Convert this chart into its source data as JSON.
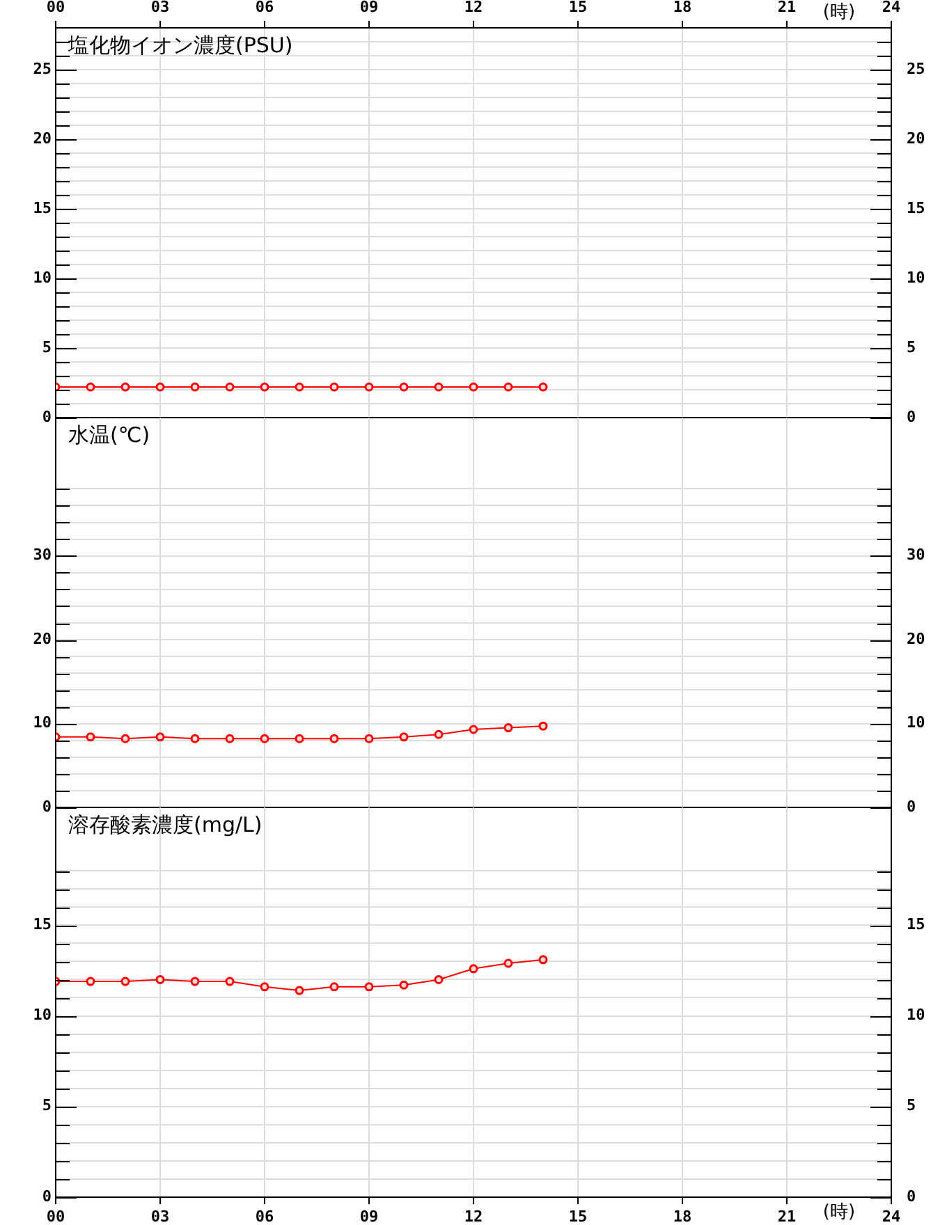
{
  "chart_data": [
    {
      "type": "line",
      "title": "塩化物イオン濃度(PSU)",
      "x": [
        0,
        1,
        2,
        3,
        4,
        5,
        6,
        7,
        8,
        9,
        10,
        11,
        12,
        13,
        14
      ],
      "series": [
        {
          "color": "#ff0000",
          "values": [
            2.2,
            2.2,
            2.2,
            2.2,
            2.2,
            2.2,
            2.2,
            2.2,
            2.2,
            2.2,
            2.2,
            2.2,
            2.2,
            2.2,
            2.2
          ]
        }
      ],
      "xlim": [
        0,
        24
      ],
      "xticks": [
        {
          "value": 0,
          "label": null
        },
        {
          "value": 3,
          "label": null
        },
        {
          "value": 6,
          "label": null
        },
        {
          "value": 9,
          "label": null
        },
        {
          "value": 12,
          "label": null
        },
        {
          "value": 15,
          "label": null
        },
        {
          "value": 18,
          "label": null
        },
        {
          "value": 21,
          "label": null
        },
        {
          "value": 24,
          "label": null
        }
      ],
      "x2lim": [
        0,
        24
      ],
      "x2ticks": [
        {
          "value": 0,
          "label": "00"
        },
        {
          "value": 3,
          "label": "03"
        },
        {
          "value": 6,
          "label": "06"
        },
        {
          "value": 9,
          "label": "09"
        },
        12,
        15,
        18,
        21,
        24
      ],
      "x2label": "(時)",
      "ylim": [
        0,
        28
      ],
      "yticks": [
        0,
        {
          "value": 1,
          "label": null
        },
        {
          "value": 2,
          "label": null
        },
        {
          "value": 3,
          "label": null
        },
        {
          "value": 4,
          "label": null
        },
        5,
        {
          "value": 6,
          "label": null
        },
        {
          "value": 7,
          "label": null
        },
        {
          "value": 8,
          "label": null
        },
        {
          "value": 9,
          "label": null
        },
        10,
        {
          "value": 11,
          "label": null
        },
        {
          "value": 12,
          "label": null
        },
        {
          "value": 13,
          "label": null
        },
        {
          "value": 14,
          "label": null
        },
        15,
        {
          "value": 16,
          "label": null
        },
        {
          "value": 17,
          "label": null
        },
        {
          "value": 18,
          "label": null
        },
        {
          "value": 19,
          "label": null
        },
        20,
        {
          "value": 21,
          "label": null
        },
        {
          "value": 22,
          "label": null
        },
        {
          "value": 23,
          "label": null
        },
        {
          "value": 24,
          "label": null
        },
        25,
        {
          "value": 26,
          "label": null
        },
        {
          "value": 27,
          "label": null
        }
      ],
      "y2lim": [
        0,
        28
      ],
      "y2ticks": [
        0,
        {
          "value": 1,
          "label": null
        },
        {
          "value": 2,
          "label": null
        },
        {
          "value": 3,
          "label": null
        },
        {
          "value": 4,
          "label": null
        },
        5,
        {
          "value": 6,
          "label": null
        },
        {
          "value": 7,
          "label": null
        },
        {
          "value": 8,
          "label": null
        },
        {
          "value": 9,
          "label": null
        },
        10,
        {
          "value": 11,
          "label": null
        },
        {
          "value": 12,
          "label": null
        },
        {
          "value": 13,
          "label": null
        },
        {
          "value": 14,
          "label": null
        },
        15,
        {
          "value": 16,
          "label": null
        },
        {
          "value": 17,
          "label": null
        },
        {
          "value": 18,
          "label": null
        },
        {
          "value": 19,
          "label": null
        },
        20,
        {
          "value": 21,
          "label": null
        },
        {
          "value": 22,
          "label": null
        },
        {
          "value": 23,
          "label": null
        },
        {
          "value": 24,
          "label": null
        },
        25,
        {
          "value": 26,
          "label": null
        },
        {
          "value": 27,
          "label": null
        }
      ],
      "tick_labels": "y",
      "grid": true,
      "marker": "circle",
      "line_style": "solid"
    },
    {
      "type": "line",
      "title": "水温(℃)",
      "x": [
        0,
        1,
        2,
        3,
        4,
        5,
        6,
        7,
        8,
        9,
        10,
        11,
        12,
        13,
        14
      ],
      "series": [
        {
          "color": "#ff0000",
          "values": [
            8.4,
            8.4,
            8.2,
            8.4,
            8.2,
            8.2,
            8.2,
            8.2,
            8.2,
            8.2,
            8.4,
            8.7,
            9.3,
            9.5,
            9.7
          ]
        }
      ],
      "xlim": [
        0,
        24
      ],
      "xticks": [
        {
          "value": 0,
          "label": null
        },
        {
          "value": 3,
          "label": null
        },
        {
          "value": 6,
          "label": null
        },
        {
          "value": 9,
          "label": null
        },
        {
          "value": 12,
          "label": null
        },
        {
          "value": 15,
          "label": null
        },
        {
          "value": 18,
          "label": null
        },
        {
          "value": 21,
          "label": null
        },
        {
          "value": 24,
          "label": null
        }
      ],
      "ylim": [
        0,
        46.5
      ],
      "yticks": [
        0,
        {
          "value": 2,
          "label": null
        },
        {
          "value": 4,
          "label": null
        },
        {
          "value": 6,
          "label": null
        },
        {
          "value": 8,
          "label": null
        },
        10,
        {
          "value": 12,
          "label": null
        },
        {
          "value": 14,
          "label": null
        },
        {
          "value": 16,
          "label": null
        },
        {
          "value": 18,
          "label": null
        },
        20,
        {
          "value": 22,
          "label": null
        },
        {
          "value": 24,
          "label": null
        },
        {
          "value": 26,
          "label": null
        },
        {
          "value": 28,
          "label": null
        },
        30,
        {
          "value": 32,
          "label": null
        },
        {
          "value": 34,
          "label": null
        },
        {
          "value": 36,
          "label": null
        },
        {
          "value": 38,
          "label": null
        }
      ],
      "y2lim": [
        0,
        46.5
      ],
      "y2ticks": [
        0,
        {
          "value": 2,
          "label": null
        },
        {
          "value": 4,
          "label": null
        },
        {
          "value": 6,
          "label": null
        },
        {
          "value": 8,
          "label": null
        },
        10,
        {
          "value": 12,
          "label": null
        },
        {
          "value": 14,
          "label": null
        },
        {
          "value": 16,
          "label": null
        },
        {
          "value": 18,
          "label": null
        },
        20,
        {
          "value": 22,
          "label": null
        },
        {
          "value": 24,
          "label": null
        },
        {
          "value": 26,
          "label": null
        },
        {
          "value": 28,
          "label": null
        },
        30,
        {
          "value": 32,
          "label": null
        },
        {
          "value": 34,
          "label": null
        },
        {
          "value": 36,
          "label": null
        },
        {
          "value": 38,
          "label": null
        }
      ],
      "tick_labels": "y",
      "grid": true,
      "marker": "circle",
      "line_style": "solid"
    },
    {
      "type": "line",
      "title": "溶存酸素濃度(mg/L)",
      "x": [
        0,
        1,
        2,
        3,
        4,
        5,
        6,
        7,
        8,
        9,
        10,
        11,
        12,
        13,
        14
      ],
      "series": [
        {
          "color": "#ff0000",
          "values": [
            11.9,
            11.9,
            11.9,
            12.0,
            11.9,
            11.9,
            11.6,
            11.4,
            11.6,
            11.6,
            11.7,
            12.0,
            12.6,
            12.9,
            13.1
          ]
        }
      ],
      "xlim": [
        0,
        24
      ],
      "xticks": [
        {
          "value": 0,
          "label": "00"
        },
        {
          "value": 3,
          "label": "03"
        },
        {
          "value": 6,
          "label": "06"
        },
        {
          "value": 9,
          "label": "09"
        },
        12,
        15,
        18,
        21,
        24
      ],
      "xlabel": "(時)",
      "ylim": [
        0,
        21.5
      ],
      "yticks": [
        0,
        {
          "value": 1,
          "label": null
        },
        {
          "value": 2,
          "label": null
        },
        {
          "value": 3,
          "label": null
        },
        {
          "value": 4,
          "label": null
        },
        5,
        {
          "value": 6,
          "label": null
        },
        {
          "value": 7,
          "label": null
        },
        {
          "value": 8,
          "label": null
        },
        {
          "value": 9,
          "label": null
        },
        10,
        {
          "value": 11,
          "label": null
        },
        {
          "value": 12,
          "label": null
        },
        {
          "value": 13,
          "label": null
        },
        {
          "value": 14,
          "label": null
        },
        15,
        {
          "value": 16,
          "label": null
        },
        {
          "value": 17,
          "label": null
        },
        {
          "value": 18,
          "label": null
        }
      ],
      "y2lim": [
        0,
        21.5
      ],
      "y2ticks": [
        0,
        {
          "value": 1,
          "label": null
        },
        {
          "value": 2,
          "label": null
        },
        {
          "value": 3,
          "label": null
        },
        {
          "value": 4,
          "label": null
        },
        5,
        {
          "value": 6,
          "label": null
        },
        {
          "value": 7,
          "label": null
        },
        {
          "value": 8,
          "label": null
        },
        {
          "value": 9,
          "label": null
        },
        10,
        {
          "value": 11,
          "label": null
        },
        {
          "value": 12,
          "label": null
        },
        {
          "value": 13,
          "label": null
        },
        {
          "value": 14,
          "label": null
        },
        15,
        {
          "value": 16,
          "label": null
        },
        {
          "value": 17,
          "label": null
        },
        {
          "value": 18,
          "label": null
        }
      ],
      "grid": true,
      "marker": "circle",
      "line_style": "solid"
    }
  ]
}
